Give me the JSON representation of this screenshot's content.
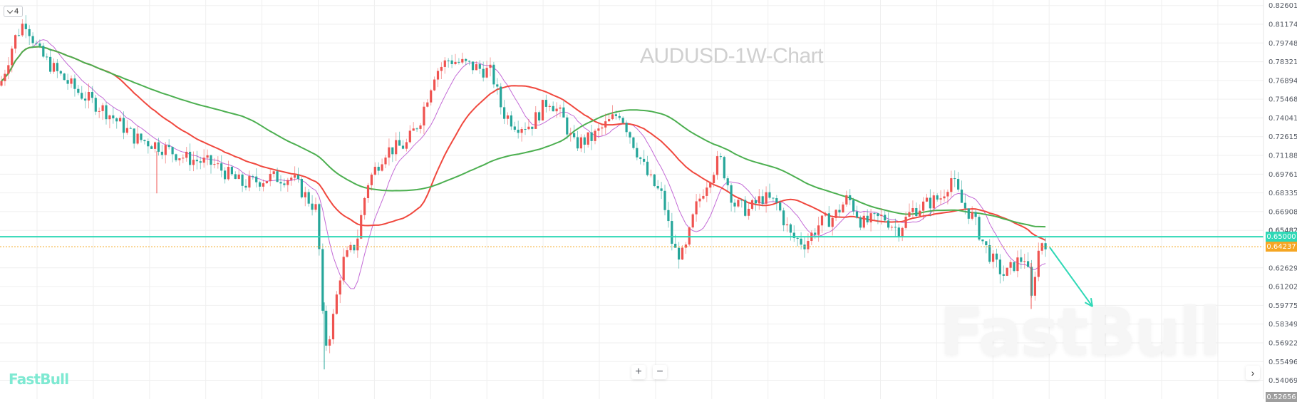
{
  "chart_data": {
    "type": "candlestick",
    "title": "AUDUSD-1W-Chart",
    "symbol": "AUDUSD",
    "timeframe": "1W",
    "xlabel": "",
    "ylabel": "",
    "ylim": [
      0.52656,
      0.82601
    ],
    "y_ticks": [
      "0.82601",
      "0.81174",
      "0.79748",
      "0.78321",
      "0.76894",
      "0.75468",
      "0.74041",
      "0.72615",
      "0.71188",
      "0.69761",
      "0.68335",
      "0.66908",
      "0.65482",
      "0.62629",
      "0.61202",
      "0.59775",
      "0.58349",
      "0.56922",
      "0.55496",
      "0.54069"
    ],
    "grid": true,
    "up_color": "#ef5350",
    "down_color": "#26a69a",
    "moving_averages": [
      {
        "name": "MA-short",
        "color": "#c36ad6",
        "width": 1
      },
      {
        "name": "MA-mid",
        "color": "#f0483e",
        "width": 2
      },
      {
        "name": "MA-long",
        "color": "#4caf50",
        "width": 2
      }
    ],
    "price_path_keypoints": [
      [
        0,
        0.765
      ],
      [
        20,
        0.8
      ],
      [
        35,
        0.815
      ],
      [
        55,
        0.79
      ],
      [
        80,
        0.775
      ],
      [
        110,
        0.76
      ],
      [
        150,
        0.745
      ],
      [
        190,
        0.725
      ],
      [
        220,
        0.72
      ],
      [
        260,
        0.71
      ],
      [
        300,
        0.705
      ],
      [
        340,
        0.69
      ],
      [
        380,
        0.695
      ],
      [
        410,
        0.695
      ],
      [
        430,
        0.68
      ],
      [
        445,
        0.67
      ],
      [
        455,
        0.565
      ],
      [
        465,
        0.58
      ],
      [
        480,
        0.63
      ],
      [
        500,
        0.645
      ],
      [
        515,
        0.69
      ],
      [
        540,
        0.715
      ],
      [
        570,
        0.72
      ],
      [
        590,
        0.74
      ],
      [
        610,
        0.775
      ],
      [
        630,
        0.785
      ],
      [
        660,
        0.78
      ],
      [
        690,
        0.775
      ],
      [
        705,
        0.745
      ],
      [
        725,
        0.735
      ],
      [
        745,
        0.735
      ],
      [
        770,
        0.755
      ],
      [
        790,
        0.74
      ],
      [
        805,
        0.72
      ],
      [
        830,
        0.725
      ],
      [
        850,
        0.735
      ],
      [
        870,
        0.745
      ],
      [
        890,
        0.72
      ],
      [
        910,
        0.695
      ],
      [
        930,
        0.68
      ],
      [
        945,
        0.64
      ],
      [
        960,
        0.635
      ],
      [
        975,
        0.67
      ],
      [
        990,
        0.69
      ],
      [
        1010,
        0.71
      ],
      [
        1030,
        0.675
      ],
      [
        1050,
        0.67
      ],
      [
        1070,
        0.68
      ],
      [
        1090,
        0.675
      ],
      [
        1110,
        0.65
      ],
      [
        1130,
        0.645
      ],
      [
        1150,
        0.66
      ],
      [
        1170,
        0.665
      ],
      [
        1190,
        0.68
      ],
      [
        1210,
        0.66
      ],
      [
        1240,
        0.665
      ],
      [
        1260,
        0.655
      ],
      [
        1280,
        0.67
      ],
      [
        1300,
        0.675
      ],
      [
        1320,
        0.68
      ],
      [
        1335,
        0.695
      ],
      [
        1350,
        0.675
      ],
      [
        1365,
        0.665
      ],
      [
        1380,
        0.645
      ],
      [
        1395,
        0.63
      ],
      [
        1410,
        0.62
      ],
      [
        1425,
        0.63
      ],
      [
        1440,
        0.635
      ],
      [
        1447,
        0.6
      ],
      [
        1455,
        0.635
      ],
      [
        1463,
        0.648
      ],
      [
        1470,
        0.645
      ]
    ],
    "horizontal_lines": [
      {
        "price": 0.65,
        "label": "0.65000",
        "color": "#2ed8b6",
        "style": "solid"
      },
      {
        "price": 0.64237,
        "label": "0.64237",
        "color": "#f5a623",
        "style": "dotted"
      }
    ],
    "annotations": [
      {
        "type": "arrow",
        "direction": "down",
        "color": "#2ed8b6",
        "from": [
          1473,
          347
        ],
        "to": [
          1533,
          430
        ]
      }
    ],
    "last_price": "0.64237",
    "bottom_axis_tag": "0.52656",
    "hidden_tick": "0.65482"
  },
  "ui": {
    "indicator_toggle_label": "4",
    "indicator_toggle_icon": "chevron-down-icon",
    "zoom_in_label": "+",
    "zoom_out_label": "−",
    "scroll_right_label": "›",
    "brand_logo": "FastBull",
    "brand_watermark": "FastBull",
    "colors": {
      "accent": "#2ed8b6",
      "last_price_tag": "#f5a623",
      "bottom_tag": "#9e9e9e",
      "grid": "#ececec"
    }
  }
}
